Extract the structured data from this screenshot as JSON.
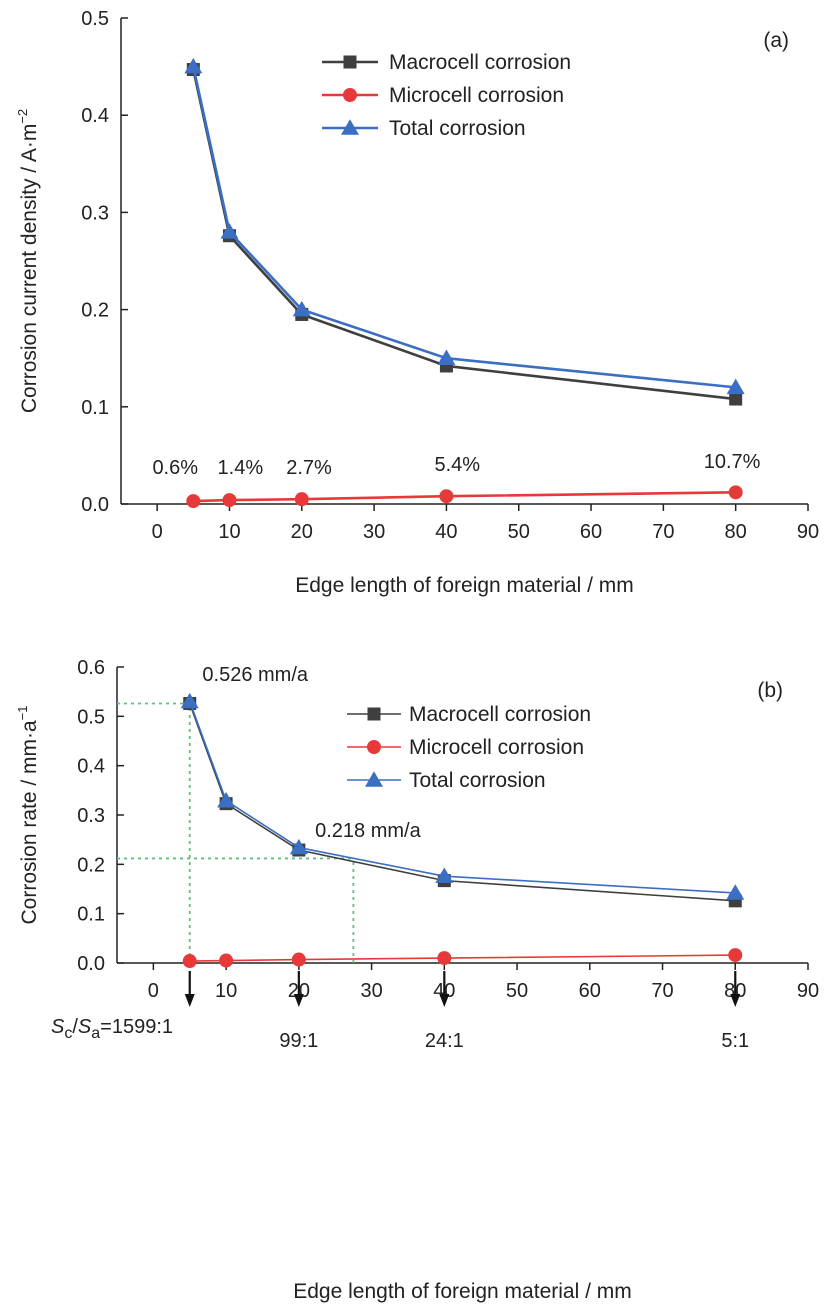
{
  "chart_data": [
    {
      "type": "line",
      "panel_label": "(a)",
      "xlabel": "Edge length of foreign material / mm",
      "ylabel": "Corrosion current density / A·m",
      "ylabel_sup": "−2",
      "xlim": [
        -5,
        90
      ],
      "ylim": [
        0,
        0.5
      ],
      "xticks": [
        0,
        10,
        20,
        30,
        40,
        50,
        60,
        70,
        80,
        90
      ],
      "yticks": [
        0.0,
        0.1,
        0.2,
        0.3,
        0.4,
        0.5
      ],
      "ytick_labels": [
        "0.0",
        "0.1",
        "0.2",
        "0.3",
        "0.4",
        "0.5"
      ],
      "x": [
        5,
        10,
        20,
        40,
        80
      ],
      "series": [
        {
          "name": "Macrocell corrosion",
          "color": "#3f3f3f",
          "marker": "square",
          "values": [
            0.447,
            0.276,
            0.195,
            0.142,
            0.108
          ]
        },
        {
          "name": "Microcell corrosion",
          "color": "#e8393a",
          "marker": "circle",
          "values": [
            0.003,
            0.004,
            0.005,
            0.008,
            0.012
          ]
        },
        {
          "name": "Total corrosion",
          "color": "#3a6fc4",
          "marker": "triangle",
          "values": [
            0.45,
            0.28,
            0.2,
            0.15,
            0.12
          ]
        }
      ],
      "legend": "top-right",
      "annotations": [
        {
          "text": "0.6%",
          "x": 2.5,
          "y": 0.031
        },
        {
          "text": "1.4%",
          "x": 11.5,
          "y": 0.031
        },
        {
          "text": "2.7%",
          "x": 21,
          "y": 0.031
        },
        {
          "text": "5.4%",
          "x": 41.5,
          "y": 0.034
        },
        {
          "text": "10.7%",
          "x": 79.5,
          "y": 0.037
        }
      ]
    },
    {
      "type": "line",
      "panel_label": "(b)",
      "xlabel": "Edge length of foreign material / mm",
      "ylabel": "Corrosion rate / mm·a",
      "ylabel_sup": "−1",
      "xlim": [
        -5,
        90
      ],
      "ylim": [
        0,
        0.6
      ],
      "xticks": [
        0,
        10,
        20,
        30,
        40,
        50,
        60,
        70,
        80,
        90
      ],
      "yticks": [
        0.0,
        0.1,
        0.2,
        0.3,
        0.4,
        0.5,
        0.6
      ],
      "ytick_labels": [
        "0.0",
        "0.1",
        "0.2",
        "0.3",
        "0.4",
        "0.5",
        "0.6"
      ],
      "x": [
        5,
        10,
        20,
        40,
        80
      ],
      "series": [
        {
          "name": "Macrocell corrosion",
          "color": "#3f3f3f",
          "marker": "square",
          "values": [
            0.526,
            0.323,
            0.229,
            0.167,
            0.126
          ]
        },
        {
          "name": "Microcell corrosion",
          "color": "#e8393a",
          "marker": "circle",
          "values": [
            0.004,
            0.005,
            0.007,
            0.01,
            0.016
          ]
        },
        {
          "name": "Total corrosion",
          "color": "#3a6fc4",
          "marker": "triangle",
          "values": [
            0.53,
            0.329,
            0.234,
            0.176,
            0.142
          ]
        }
      ],
      "legend": "top-right",
      "annotations": [
        {
          "text": "0.526 mm/a",
          "x": 14,
          "y": 0.572
        },
        {
          "text": "0.218 mm/a",
          "x": 29.5,
          "y": 0.255
        }
      ],
      "reference_lines": [
        {
          "x": [
            -5,
            5
          ],
          "y": [
            0.526,
            0.526
          ]
        },
        {
          "x": [
            5,
            5
          ],
          "y": [
            0,
            0.526
          ]
        },
        {
          "x": [
            -5,
            27.5
          ],
          "y": [
            0.212,
            0.212
          ]
        },
        {
          "x": [
            27.5,
            27.5
          ],
          "y": [
            0,
            0.212
          ]
        }
      ],
      "area_ratios": [
        {
          "x": 5,
          "prefix_s1": "S",
          "sub1": "c",
          "slash": "/",
          "prefix_s2": "S",
          "sub2": "a",
          "text": "=1599:1"
        },
        {
          "x": 20,
          "text": "99:1"
        },
        {
          "x": 40,
          "text": "24:1"
        },
        {
          "x": 80,
          "text": "5:1"
        }
      ]
    }
  ]
}
